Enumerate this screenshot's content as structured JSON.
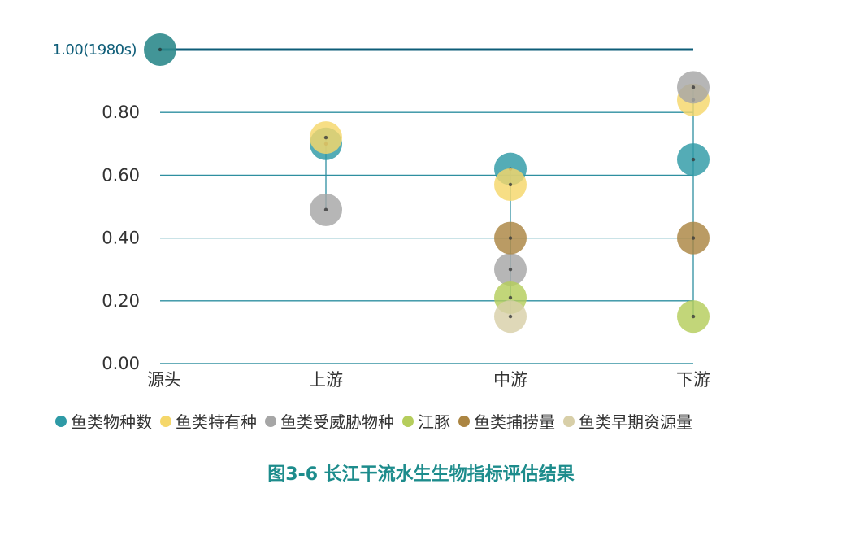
{
  "caption": "图3-6 长江干流水生生物指标评估结果",
  "chart_data": {
    "type": "scatter",
    "title": "",
    "xlabel": "",
    "ylabel": "",
    "categories": [
      "源头",
      "上游",
      "中游",
      "下游"
    ],
    "ylim": [
      0,
      1
    ],
    "yticks": [
      {
        "value": 0.0,
        "label": "0.00"
      },
      {
        "value": 0.2,
        "label": "0.20"
      },
      {
        "value": 0.4,
        "label": "0.40"
      },
      {
        "value": 0.6,
        "label": "0.60"
      },
      {
        "value": 0.8,
        "label": "0.80"
      }
    ],
    "reference_line": {
      "value": 1.0,
      "label": "1.00(1980s)",
      "color": "#0e5d78"
    },
    "grid": true,
    "legend_position": "bottom",
    "series": [
      {
        "name": "鱼类物种数",
        "color": "#2e9aa6",
        "values": [
          null,
          0.7,
          0.62,
          0.65
        ]
      },
      {
        "name": "鱼类特有种",
        "color": "#f5d76a",
        "values": [
          null,
          0.72,
          0.57,
          0.84
        ]
      },
      {
        "name": "鱼类受威胁物种",
        "color": "#a6a6a6",
        "values": [
          null,
          0.49,
          0.3,
          0.88
        ]
      },
      {
        "name": "江豚",
        "color": "#b5cd5c",
        "values": [
          null,
          null,
          0.21,
          0.15
        ]
      },
      {
        "name": "鱼类捕捞量",
        "color": "#ab8542",
        "values": [
          null,
          null,
          0.4,
          0.4
        ]
      },
      {
        "name": "鱼类早期资源量",
        "color": "#d8cfa8",
        "values": [
          null,
          null,
          0.15,
          null
        ]
      }
    ]
  }
}
